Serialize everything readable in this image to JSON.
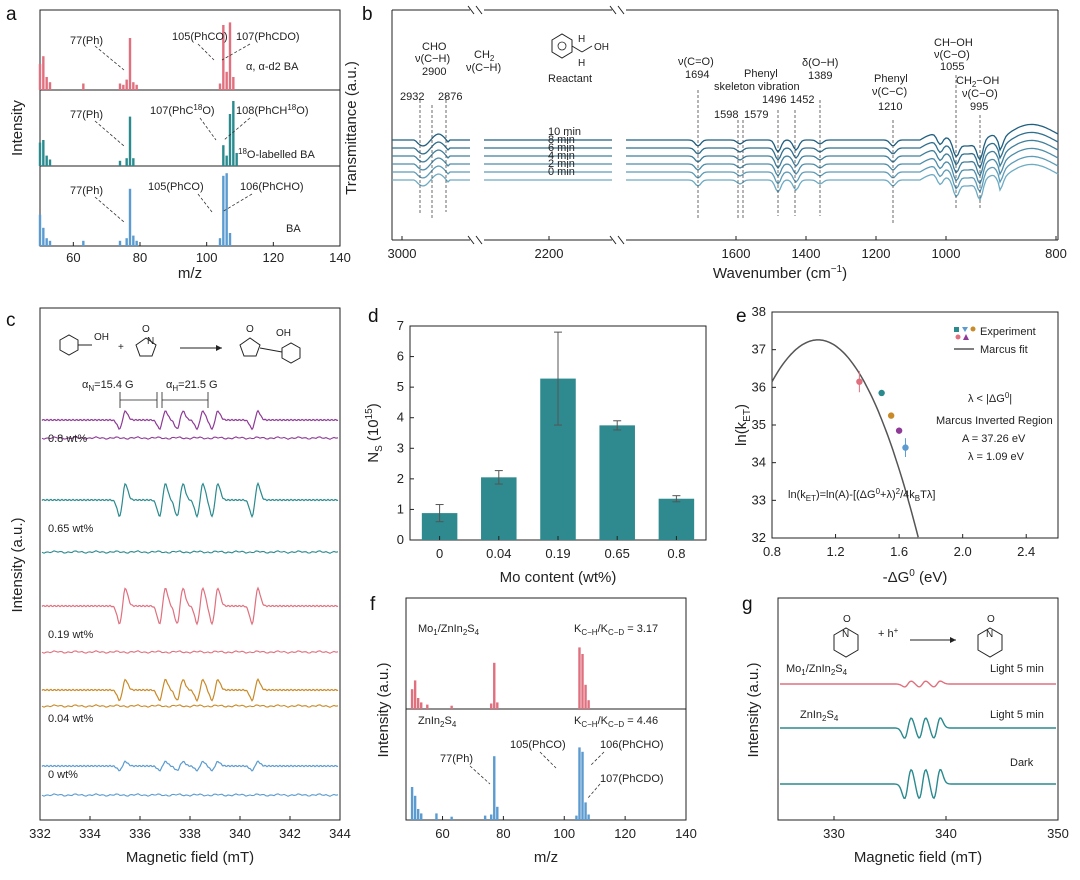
{
  "colors": {
    "red": "#e0707e",
    "teal": "#2a8a8e",
    "blue": "#5b9bd0",
    "purple": "#8e3a96",
    "orange": "#c98a28",
    "gray": "#555555",
    "bar": "#2e8a8e"
  },
  "panel_a": {
    "letter": "a",
    "xlabel": "m/z",
    "ylabel": "Intensity",
    "xticks": [
      "60",
      "80",
      "100",
      "120",
      "140"
    ],
    "sub": [
      {
        "label": "α, α-d2 BA",
        "a1": "77(Ph)",
        "a2": "105(PhCO)",
        "a3": "107(PhCDO)"
      },
      {
        "label": "18O-labelled BA",
        "label_pre": "",
        "label_sup": "18",
        "label_post": "O-labelled BA",
        "a1": "77(Ph)",
        "a2": "107(PhC18O)",
        "a3": "108(PhCH18O)"
      },
      {
        "label": "BA",
        "a1": "77(Ph)",
        "a2": "105(PhCO)",
        "a3": "106(PhCHO)"
      }
    ]
  },
  "panel_b": {
    "letter": "b",
    "xlabel": "Wavenumber (cm-1)",
    "ylabel": "Transmittance (a.u.)",
    "xticks": [
      "3000",
      "2200",
      "1600",
      "1400",
      "1200",
      "1000",
      "800"
    ],
    "reactant": "Reactant",
    "times": [
      "10 min",
      "8 min",
      "6 min",
      "4 min",
      "2 min",
      "0 min"
    ],
    "annotations": [
      {
        "text": "CHO",
        "l2": "ν(C−H)",
        "l3": "2900"
      },
      {
        "text": "CH2",
        "l2": "ν(C−H)"
      },
      {
        "text": "2932"
      },
      {
        "text": "2876"
      },
      {
        "text": "ν(C=O)",
        "l2": "1694"
      },
      {
        "text": "Phenyl",
        "l2": "skeleton vibration",
        "l3": "1496",
        "l4": "1452"
      },
      {
        "text": "1598",
        "l2": "1579"
      },
      {
        "text": "δ(O−H)",
        "l2": "1389"
      },
      {
        "text": "Phenyl",
        "l2": "ν(C−C)",
        "l3": "1210"
      },
      {
        "text": "CH−OH",
        "l2": "ν(C−O)",
        "l3": "1055"
      },
      {
        "text": "CH2−OH",
        "l2": "ν(C−O)",
        "l3": "995"
      }
    ]
  },
  "panel_c": {
    "letter": "c",
    "xlabel": "Magnetic field (mT)",
    "ylabel": "Intensity (a.u.)",
    "xticks": [
      "332",
      "334",
      "336",
      "338",
      "340",
      "342",
      "344"
    ],
    "aN": "αN=15.4 G",
    "aH": "αH=21.5 G",
    "series": [
      "0.8 wt%",
      "0.65 wt%",
      "0.19 wt%",
      "0.04 wt%",
      "0 wt%"
    ]
  },
  "chart_data": {
    "type": "bar",
    "categories": [
      "0",
      "0.04",
      "0.19",
      "0.65",
      "0.8"
    ],
    "values": [
      0.88,
      2.05,
      5.28,
      3.75,
      1.35
    ],
    "errors": [
      0.28,
      0.22,
      1.52,
      0.15,
      0.1
    ],
    "xlabel": "Mo content (wt%)",
    "ylabel": "NS (10^15)",
    "ylim": [
      0,
      7
    ],
    "yticks": [
      "0",
      "1",
      "2",
      "3",
      "4",
      "5",
      "6",
      "7"
    ]
  },
  "panel_d": {
    "letter": "d"
  },
  "panel_e": {
    "letter": "e",
    "xlabel": "-ΔG0 (eV)",
    "ylabel": "ln(kET)",
    "xticks": [
      "0.8",
      "1.2",
      "1.6",
      "2.0",
      "2.4"
    ],
    "yticks": [
      "32",
      "33",
      "34",
      "35",
      "36",
      "37",
      "38"
    ],
    "legend_exp": "Experiment",
    "legend_fit": "Marcus fit",
    "t1": "λ < |ΔG0|",
    "t2": "Marcus Inverted Region",
    "t3": "A = 37.26 eV",
    "t4": "λ = 1.09 eV",
    "eq": "ln(kET)=ln(A)-[(ΔG0+λ)2/4kBTλ]",
    "points": [
      {
        "x": 1.35,
        "y": 36.15,
        "e": 0.28
      },
      {
        "x": 1.49,
        "y": 35.85,
        "e": 0.05
      },
      {
        "x": 1.55,
        "y": 35.25,
        "e": 0.08
      },
      {
        "x": 1.6,
        "y": 34.85,
        "e": 0.08
      },
      {
        "x": 1.64,
        "y": 34.4,
        "e": 0.25
      }
    ],
    "fit": {
      "A": 37.26,
      "lambda": 1.09
    }
  },
  "panel_f": {
    "letter": "f",
    "xlabel": "m/z",
    "ylabel": "Intensity (a.u.)",
    "xticks": [
      "60",
      "80",
      "100",
      "120",
      "140"
    ],
    "top_label": "Mo1/ZnIn2S4",
    "top_ratio": "KC−H/KC−D = 3.17",
    "bot_label": "ZnIn2S4",
    "bot_ratio": "KC−H/KC−D = 4.46",
    "a1": "77(Ph)",
    "a2": "105(PhCO)",
    "a3": "106(PhCHO)",
    "a4": "107(PhCDO)"
  },
  "panel_g": {
    "letter": "g",
    "xlabel": "Magnetic field (mT)",
    "ylabel": "Intensity (a.u.)",
    "xticks": [
      "330",
      "340",
      "350"
    ],
    "plus": "+ h+",
    "rows": [
      {
        "left": "Mo1/ZnIn2S4",
        "right": "Light 5 min"
      },
      {
        "left": "ZnIn2S4",
        "right": "Light 5 min"
      },
      {
        "left": "",
        "right": "Dark"
      }
    ]
  }
}
